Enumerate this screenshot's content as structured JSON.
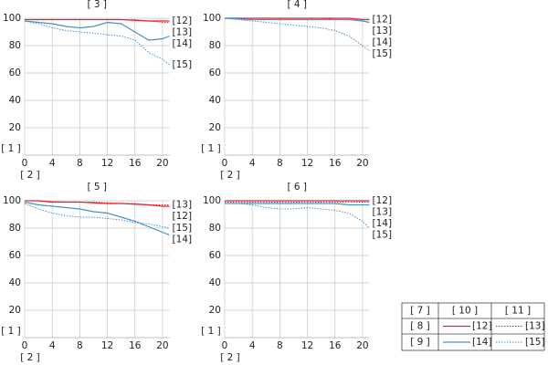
{
  "chart_data": [
    {
      "type": "line",
      "title": "[ 3 ]",
      "x_label": "[ 2 ]",
      "y_label": "[ 1 ]",
      "x": [
        0,
        2,
        4,
        6,
        8,
        10,
        12,
        14,
        16,
        18,
        20,
        21
      ],
      "xlim": [
        0,
        21
      ],
      "ylim": [
        0,
        100
      ],
      "xticks": [
        0,
        4,
        8,
        12,
        16,
        20
      ],
      "yticks": [
        20,
        40,
        60,
        80,
        100
      ],
      "grid": true,
      "series": [
        {
          "name": "[12]",
          "color": "#e8202a",
          "line_style": "solid",
          "values": [
            99,
            99,
            99,
            99,
            99,
            99,
            99,
            99,
            98.5,
            98,
            98,
            98
          ]
        },
        {
          "name": "[13]",
          "color": "#e8202a",
          "line_style": "dotted",
          "values": [
            99,
            99,
            99,
            99,
            99,
            99,
            99,
            99,
            99,
            98,
            97,
            97
          ]
        },
        {
          "name": "[14]",
          "color": "#4a8fc8",
          "line_style": "solid",
          "values": [
            98,
            97,
            96,
            94,
            93,
            94,
            97,
            96,
            90,
            84,
            85,
            87
          ]
        },
        {
          "name": "[15]",
          "color": "#4a8fc8",
          "line_style": "dotted",
          "values": [
            98,
            96,
            93,
            91,
            90,
            89,
            88,
            87,
            84,
            75,
            70,
            66
          ]
        }
      ]
    },
    {
      "type": "line",
      "title": "[ 4 ]",
      "x_label": "[ 2 ]",
      "y_label": "[ 1 ]",
      "x": [
        0,
        2,
        4,
        6,
        8,
        10,
        12,
        14,
        16,
        18,
        20,
        21
      ],
      "xlim": [
        0,
        21
      ],
      "ylim": [
        0,
        100
      ],
      "xticks": [
        0,
        4,
        8,
        12,
        16,
        20
      ],
      "yticks": [
        20,
        40,
        60,
        80,
        100
      ],
      "grid": true,
      "series": [
        {
          "name": "[12]",
          "color": "#e8202a",
          "line_style": "solid",
          "values": [
            100,
            100,
            100,
            100,
            100,
            100,
            100,
            100,
            100,
            100,
            99,
            99
          ]
        },
        {
          "name": "[13]",
          "color": "#e8202a",
          "line_style": "dotted",
          "values": [
            100,
            100,
            100,
            100,
            100,
            100,
            100,
            100,
            99,
            99,
            98,
            97
          ]
        },
        {
          "name": "[14]",
          "color": "#4a8fc8",
          "line_style": "solid",
          "values": [
            100,
            99.5,
            99,
            99,
            99,
            99,
            99,
            99,
            99,
            99,
            98,
            97
          ]
        },
        {
          "name": "[15]",
          "color": "#4a8fc8",
          "line_style": "dotted",
          "values": [
            100,
            99,
            98,
            97,
            96,
            95,
            94,
            93,
            91,
            87,
            80,
            76
          ]
        }
      ]
    },
    {
      "type": "line",
      "title": "[ 5 ]",
      "x_label": "[ 2 ]",
      "y_label": "[ 1 ]",
      "x": [
        0,
        2,
        4,
        6,
        8,
        10,
        12,
        14,
        16,
        18,
        20,
        21
      ],
      "xlim": [
        0,
        21
      ],
      "ylim": [
        0,
        100
      ],
      "xticks": [
        0,
        4,
        8,
        12,
        16,
        20
      ],
      "yticks": [
        20,
        40,
        60,
        80,
        100
      ],
      "grid": true,
      "series": [
        {
          "name": "[12]",
          "color": "#e8202a",
          "line_style": "solid",
          "values": [
            100,
            100,
            99,
            99,
            99,
            98.5,
            98,
            98,
            97.5,
            97,
            96,
            96
          ]
        },
        {
          "name": "[13]",
          "color": "#e8202a",
          "line_style": "dotted",
          "values": [
            100,
            100,
            99.5,
            99,
            99,
            99,
            98.5,
            98,
            98,
            97,
            97,
            97
          ]
        },
        {
          "name": "[14]",
          "color": "#4a8fc8",
          "line_style": "solid",
          "values": [
            99,
            97,
            96,
            95,
            94,
            92,
            91,
            88,
            85,
            81,
            77,
            75
          ]
        },
        {
          "name": "[15]",
          "color": "#4a8fc8",
          "line_style": "dotted",
          "values": [
            98,
            94,
            91,
            89,
            88,
            88,
            87,
            86,
            84,
            83,
            81,
            80
          ]
        }
      ]
    },
    {
      "type": "line",
      "title": "[ 6 ]",
      "x_label": "[ 2 ]",
      "y_label": "[ 1 ]",
      "x": [
        0,
        2,
        4,
        6,
        8,
        10,
        12,
        14,
        16,
        18,
        20,
        21
      ],
      "xlim": [
        0,
        21
      ],
      "ylim": [
        0,
        100
      ],
      "xticks": [
        0,
        4,
        8,
        12,
        16,
        20
      ],
      "yticks": [
        20,
        40,
        60,
        80,
        100
      ],
      "grid": true,
      "series": [
        {
          "name": "[12]",
          "color": "#e8202a",
          "line_style": "solid",
          "values": [
            100,
            100,
            100,
            100,
            100,
            100,
            100,
            100,
            100,
            100,
            100,
            100
          ]
        },
        {
          "name": "[13]",
          "color": "#e8202a",
          "line_style": "dotted",
          "values": [
            99,
            99,
            99,
            99,
            99,
            99,
            99,
            99,
            99,
            99,
            99,
            99
          ]
        },
        {
          "name": "[14]",
          "color": "#4a8fc8",
          "line_style": "solid",
          "values": [
            98,
            98,
            98,
            98,
            98,
            98,
            98,
            98,
            98,
            97,
            97,
            97
          ]
        },
        {
          "name": "[15]",
          "color": "#4a8fc8",
          "line_style": "dotted",
          "values": [
            98,
            98,
            97,
            95,
            94,
            94,
            95,
            94,
            93,
            91,
            85,
            80
          ]
        }
      ]
    }
  ],
  "legend_table": {
    "header": [
      "[ 7 ]",
      "[ 10 ]",
      "[ 11 ]"
    ],
    "rows": [
      {
        "label": "[ 8 ]",
        "cells": [
          "[12]",
          "[13]"
        ]
      },
      {
        "label": "[ 9 ]",
        "cells": [
          "[14]",
          "[15]"
        ]
      }
    ]
  }
}
